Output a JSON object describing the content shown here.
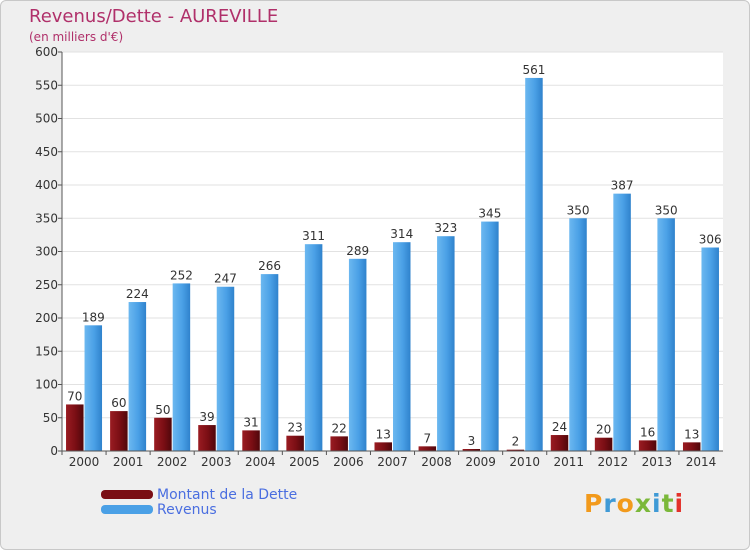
{
  "title": "Revenus/Dette - AUREVILLE",
  "subtitle": "(en milliers d'€)",
  "legend": [
    {
      "label": "Montant de la Dette",
      "color": "#7a0e14"
    },
    {
      "label": "Revenus",
      "color": "#4aa0e6"
    }
  ],
  "logo": {
    "text": "Proxiti",
    "letters": [
      {
        "ch": "P",
        "color": "#f29a1c"
      },
      {
        "ch": "r",
        "color": "#3f9ad6"
      },
      {
        "ch": "o",
        "color": "#f29a1c"
      },
      {
        "ch": "x",
        "color": "#7bb83a"
      },
      {
        "ch": "i",
        "color": "#3f9ad6"
      },
      {
        "ch": "t",
        "color": "#7bb83a"
      },
      {
        "ch": "i",
        "color": "#e3312a"
      }
    ]
  },
  "chart_data": {
    "type": "bar",
    "categories": [
      "2000",
      "2001",
      "2002",
      "2003",
      "2004",
      "2005",
      "2006",
      "2007",
      "2008",
      "2009",
      "2010",
      "2011",
      "2012",
      "2013",
      "2014"
    ],
    "series": [
      {
        "name": "Montant de la Dette",
        "color": "#7a0e14",
        "values": [
          70,
          60,
          50,
          39,
          31,
          23,
          22,
          13,
          7,
          3,
          2,
          24,
          20,
          16,
          13
        ]
      },
      {
        "name": "Revenus",
        "color": "#4aa0e6",
        "values": [
          189,
          224,
          252,
          247,
          266,
          311,
          289,
          314,
          323,
          345,
          561,
          350,
          387,
          350,
          306
        ]
      }
    ],
    "ylim": [
      0,
      600
    ],
    "yticks": [
      0,
      50,
      100,
      150,
      200,
      250,
      300,
      350,
      400,
      450,
      500,
      550,
      600
    ],
    "grid": true,
    "legend_position": "bottom-left"
  }
}
